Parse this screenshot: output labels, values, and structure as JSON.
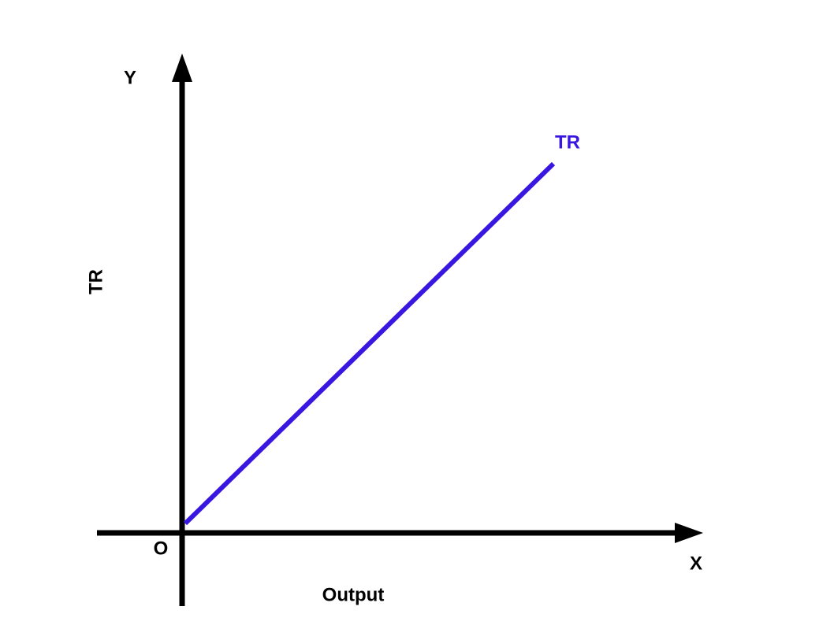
{
  "axes": {
    "y_label": "Y",
    "x_label": "X",
    "origin": "O",
    "y_title": "TR",
    "x_title": "Output"
  },
  "curve": {
    "label": "TR"
  }
}
